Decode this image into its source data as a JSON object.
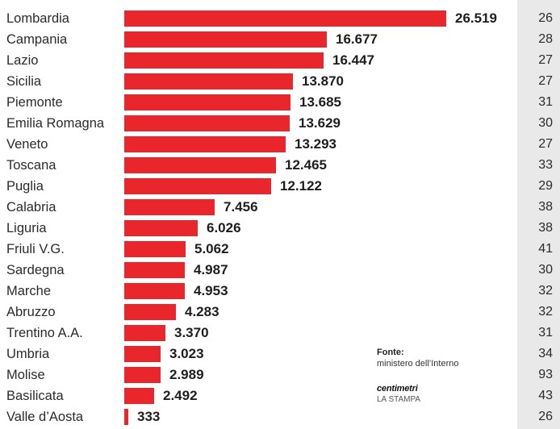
{
  "chart_data": {
    "type": "bar",
    "orientation": "horizontal",
    "categories": [
      "Lombardia",
      "Campania",
      "Lazio",
      "Sicilia",
      "Piemonte",
      "Emilia Romagna",
      "Veneto",
      "Toscana",
      "Puglia",
      "Calabria",
      "Liguria",
      "Friuli V.G.",
      "Sardegna",
      "Marche",
      "Abruzzo",
      "Trentino A.A.",
      "Umbria",
      "Molise",
      "Basilicata",
      "Valle d’Aosta"
    ],
    "values": [
      26519,
      16677,
      16447,
      13870,
      13685,
      13629,
      13293,
      12465,
      12122,
      7456,
      6026,
      5062,
      4987,
      4953,
      4283,
      3370,
      3023,
      2989,
      2492,
      333
    ],
    "value_labels": [
      "26.519",
      "16.677",
      "16.447",
      "13.870",
      "13.685",
      "13.629",
      "13.293",
      "12.465",
      "12.122",
      "7.456",
      "6.026",
      "5.062",
      "4.987",
      "4.953",
      "4.283",
      "3.370",
      "3.023",
      "2.989",
      "2.492",
      "333"
    ],
    "side_values": [
      "26",
      "28",
      "27",
      "27",
      "31",
      "30",
      "27",
      "33",
      "29",
      "38",
      "38",
      "41",
      "30",
      "32",
      "32",
      "31",
      "34",
      "93",
      "43",
      "26"
    ],
    "xlim": [
      0,
      26519
    ],
    "grid": false,
    "legend": "none",
    "bar_color": "#e8262c"
  },
  "source": {
    "title": "Fonte:",
    "text": "ministero dell’Interno"
  },
  "brand": {
    "name": "centimetri",
    "sub": "LA STAMPA"
  }
}
